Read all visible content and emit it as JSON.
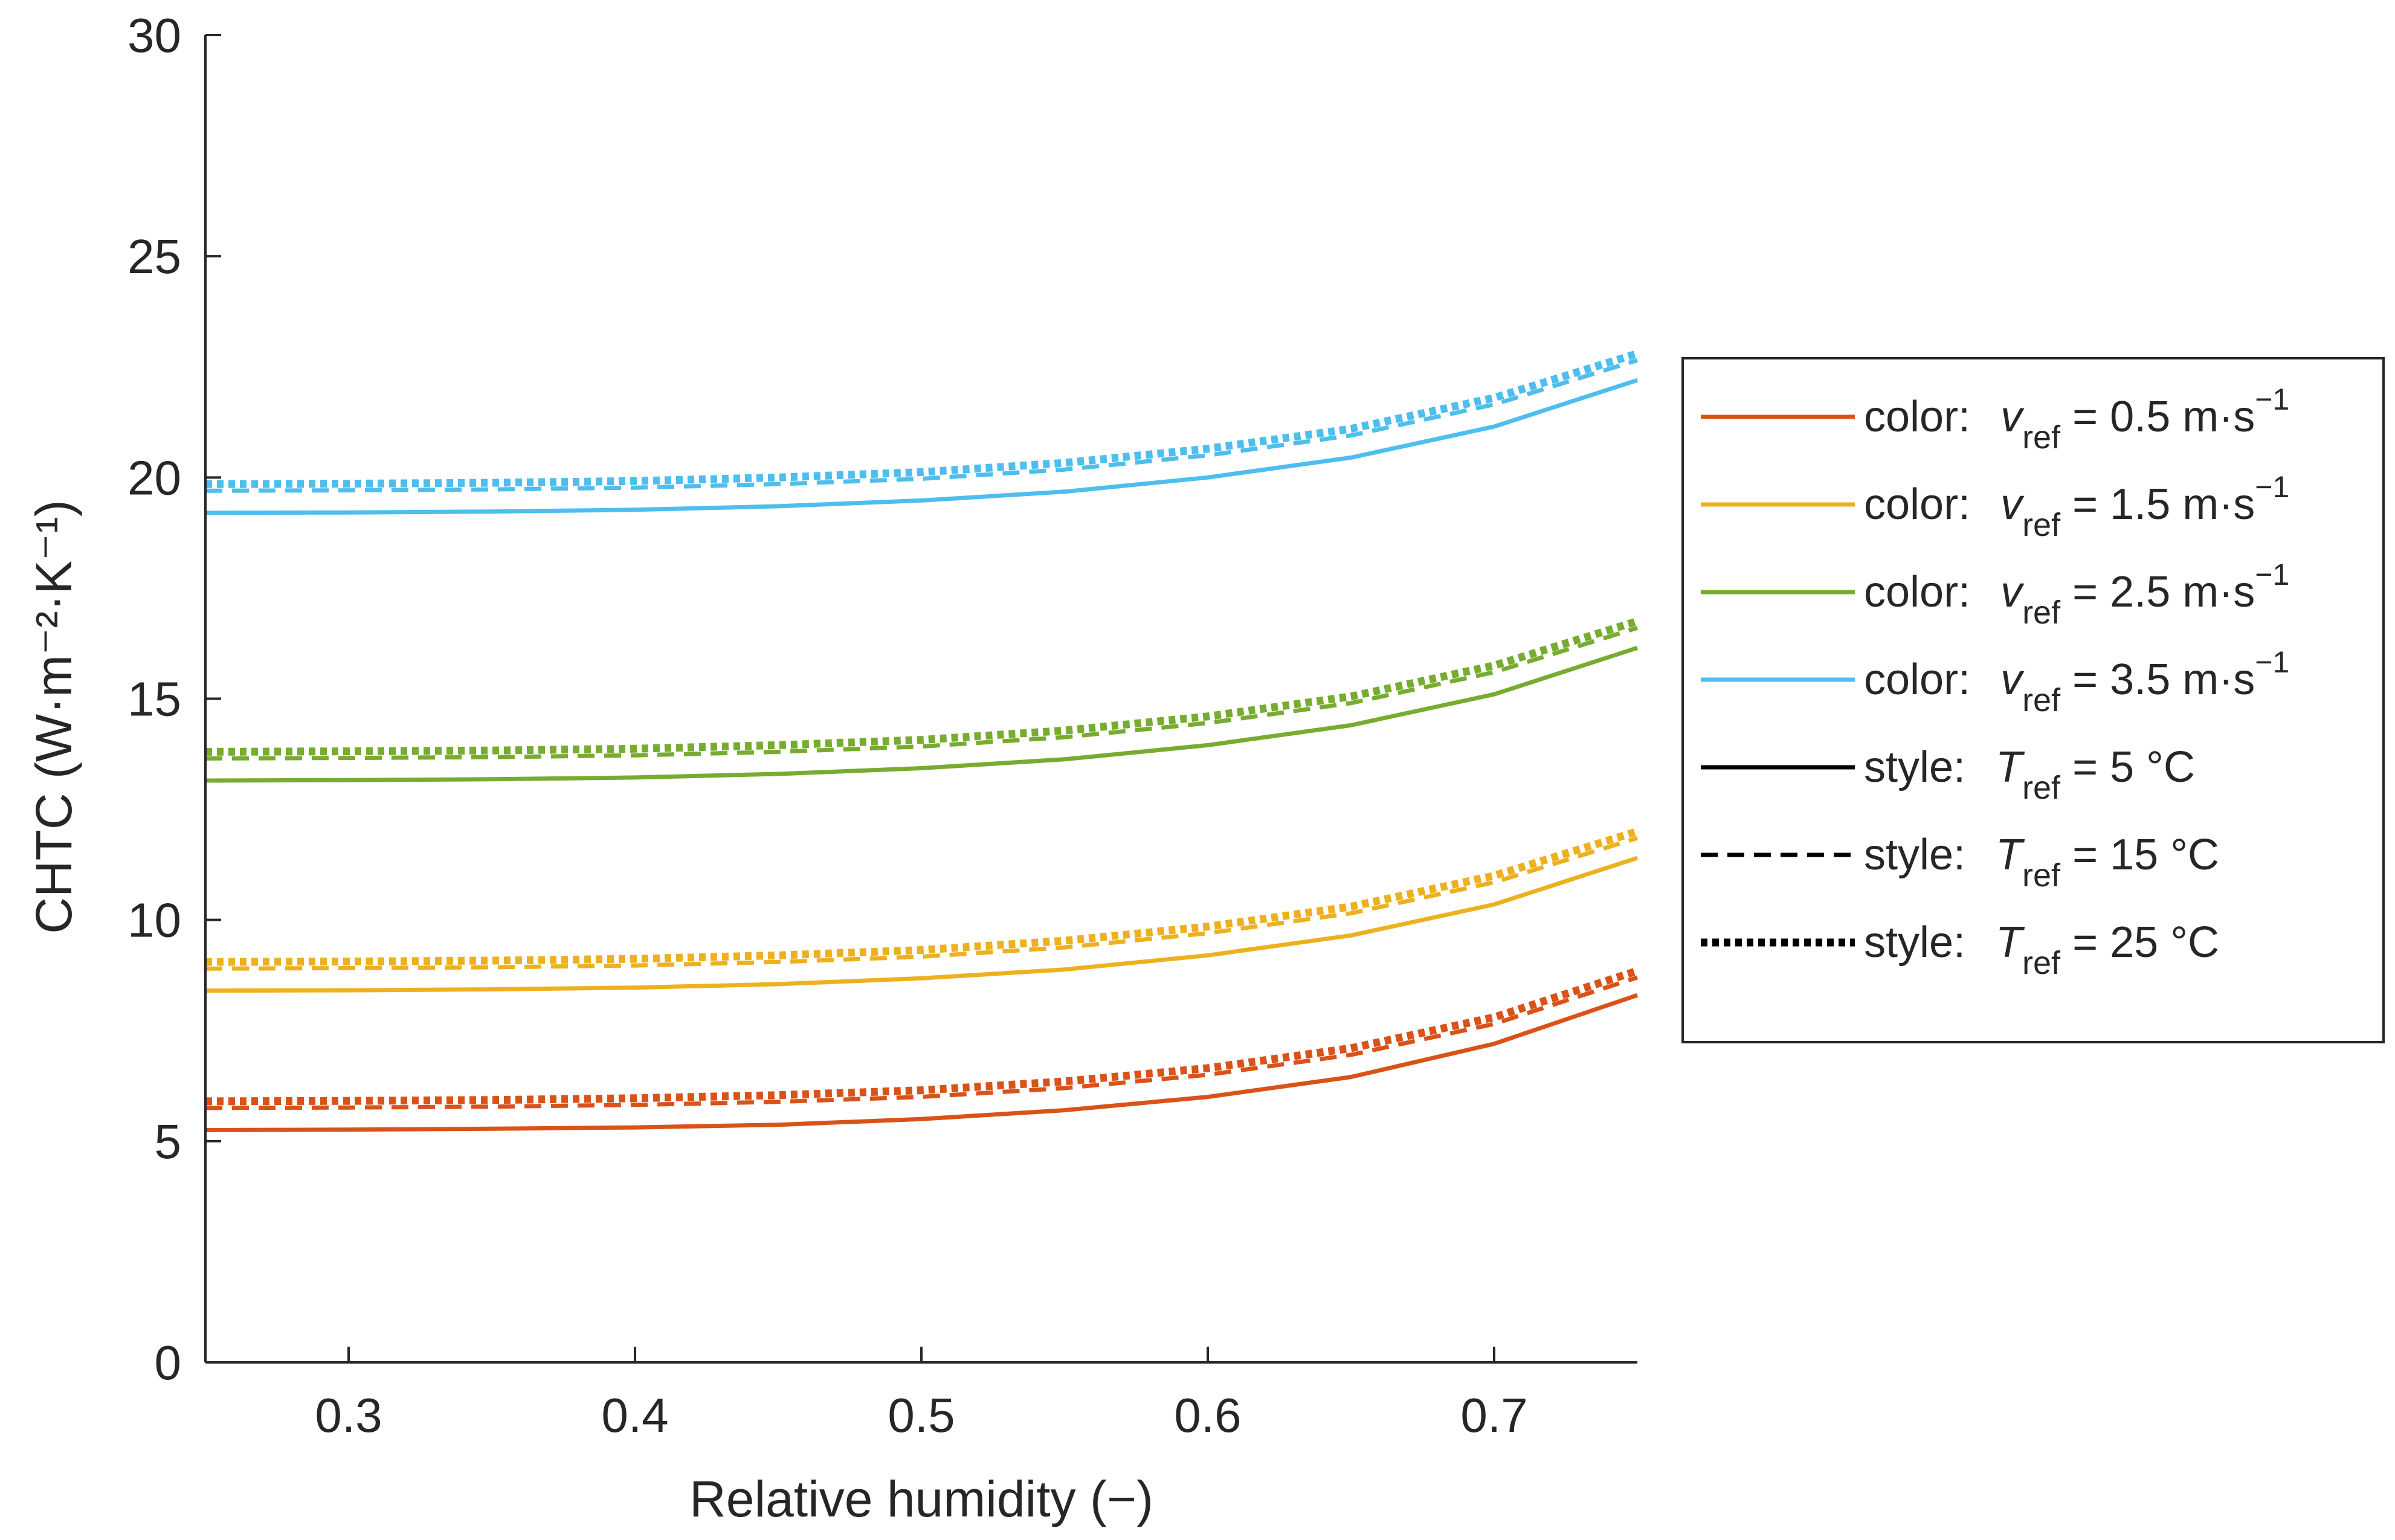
{
  "colors": {
    "v05": "#D95319",
    "v15": "#EDB120",
    "v25": "#77AC30",
    "v35": "#4DBEEE",
    "axis": "#262626",
    "style_key": "#000000"
  },
  "chart_data": {
    "type": "line",
    "title": "",
    "xlabel": "Relative humidity (−)",
    "ylabel": "CHTC (W·m⁻²·K⁻¹)",
    "xlim": [
      0.25,
      0.75
    ],
    "ylim": [
      0,
      30
    ],
    "xticks": [
      0.3,
      0.4,
      0.5,
      0.6,
      0.7
    ],
    "xtick_labels": [
      "0.3",
      "0.4",
      "0.5",
      "0.6",
      "0.7"
    ],
    "yticks": [
      0,
      5,
      10,
      15,
      20,
      25,
      30
    ],
    "ytick_labels": [
      "0",
      "5",
      "10",
      "15",
      "20",
      "25",
      "30"
    ],
    "grid": false,
    "x": [
      0.25,
      0.3,
      0.35,
      0.4,
      0.45,
      0.5,
      0.55,
      0.6,
      0.65,
      0.7,
      0.75
    ],
    "series": [
      {
        "name": "v_ref = 0.5, T_ref = 5",
        "color_key": "v05",
        "style": "solid",
        "values": [
          5.25,
          5.26,
          5.28,
          5.31,
          5.37,
          5.5,
          5.7,
          6.0,
          6.45,
          7.2,
          8.3
        ]
      },
      {
        "name": "v_ref = 0.5, T_ref = 15",
        "color_key": "v05",
        "style": "dashed",
        "values": [
          5.75,
          5.76,
          5.78,
          5.82,
          5.89,
          6.0,
          6.2,
          6.5,
          6.95,
          7.65,
          8.7
        ]
      },
      {
        "name": "v_ref = 0.5, T_ref = 25",
        "color_key": "v05",
        "style": "dotted",
        "values": [
          5.9,
          5.91,
          5.93,
          5.97,
          6.04,
          6.15,
          6.35,
          6.65,
          7.1,
          7.8,
          8.85
        ]
      },
      {
        "name": "v_ref = 1.5, T_ref = 5",
        "color_key": "v15",
        "style": "solid",
        "values": [
          8.4,
          8.41,
          8.43,
          8.47,
          8.55,
          8.68,
          8.88,
          9.2,
          9.65,
          10.35,
          11.4
        ]
      },
      {
        "name": "v_ref = 1.5, T_ref = 15",
        "color_key": "v15",
        "style": "dashed",
        "values": [
          8.9,
          8.91,
          8.93,
          8.97,
          9.05,
          9.17,
          9.38,
          9.7,
          10.15,
          10.85,
          11.85
        ]
      },
      {
        "name": "v_ref = 1.5, T_ref = 25",
        "color_key": "v15",
        "style": "dotted",
        "values": [
          9.05,
          9.06,
          9.08,
          9.12,
          9.2,
          9.32,
          9.53,
          9.85,
          10.3,
          11.0,
          12.0
        ]
      },
      {
        "name": "v_ref = 2.5, T_ref = 5",
        "color_key": "v25",
        "style": "solid",
        "values": [
          13.15,
          13.16,
          13.18,
          13.22,
          13.3,
          13.43,
          13.63,
          13.95,
          14.4,
          15.1,
          16.15
        ]
      },
      {
        "name": "v_ref = 2.5, T_ref = 15",
        "color_key": "v25",
        "style": "dashed",
        "values": [
          13.65,
          13.66,
          13.68,
          13.72,
          13.8,
          13.92,
          14.13,
          14.45,
          14.9,
          15.6,
          16.6
        ]
      },
      {
        "name": "v_ref = 2.5, T_ref = 25",
        "color_key": "v25",
        "style": "dotted",
        "values": [
          13.8,
          13.81,
          13.83,
          13.87,
          13.95,
          14.07,
          14.28,
          14.6,
          15.05,
          15.75,
          16.75
        ]
      },
      {
        "name": "v_ref = 3.5, T_ref = 5",
        "color_key": "v35",
        "style": "solid",
        "values": [
          19.2,
          19.21,
          19.23,
          19.27,
          19.35,
          19.48,
          19.68,
          20.0,
          20.45,
          21.15,
          22.2
        ]
      },
      {
        "name": "v_ref = 3.5, T_ref = 15",
        "color_key": "v35",
        "style": "dashed",
        "values": [
          19.7,
          19.71,
          19.73,
          19.77,
          19.85,
          19.97,
          20.18,
          20.5,
          20.95,
          21.65,
          22.65
        ]
      },
      {
        "name": "v_ref = 3.5, T_ref = 25",
        "color_key": "v35",
        "style": "dotted",
        "values": [
          19.85,
          19.86,
          19.88,
          19.92,
          20.0,
          20.12,
          20.33,
          20.65,
          21.1,
          21.8,
          22.8
        ]
      }
    ],
    "legend": {
      "placement": "right",
      "entries": [
        {
          "prefix": "color:",
          "var": "v",
          "sub": "ref",
          "text": " = 0.5 m·s",
          "sup": "−1",
          "color_key": "v05",
          "style": "solid"
        },
        {
          "prefix": "color:",
          "var": "v",
          "sub": "ref",
          "text": " = 1.5 m·s",
          "sup": "−1",
          "color_key": "v15",
          "style": "solid"
        },
        {
          "prefix": "color:",
          "var": "v",
          "sub": "ref",
          "text": " = 2.5 m·s",
          "sup": "−1",
          "color_key": "v25",
          "style": "solid"
        },
        {
          "prefix": "color:",
          "var": "v",
          "sub": "ref",
          "text": " = 3.5 m·s",
          "sup": "−1",
          "color_key": "v35",
          "style": "solid"
        },
        {
          "prefix": "style:",
          "var": "T",
          "sub": "ref",
          "text": " = 5 °C",
          "sup": "",
          "color_key": "style_key",
          "style": "solid"
        },
        {
          "prefix": "style:",
          "var": "T",
          "sub": "ref",
          "text": " = 15 °C",
          "sup": "",
          "color_key": "style_key",
          "style": "dashed"
        },
        {
          "prefix": "style:",
          "var": "T",
          "sub": "ref",
          "text": " = 25 °C",
          "sup": "",
          "color_key": "style_key",
          "style": "dotted"
        }
      ]
    }
  }
}
